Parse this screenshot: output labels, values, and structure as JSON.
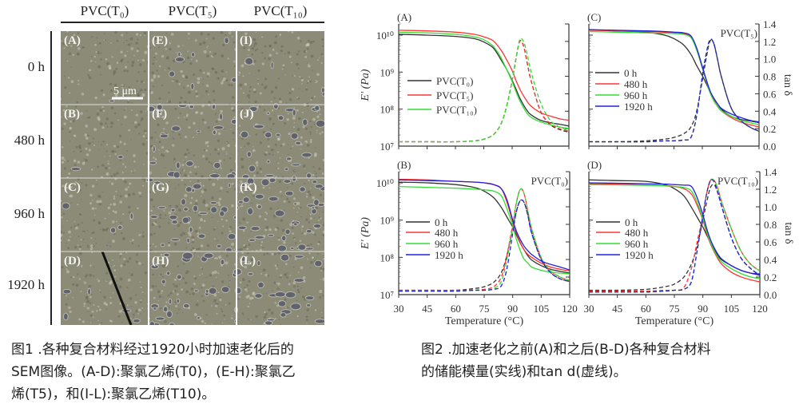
{
  "sem_figure": {
    "column_headers": [
      "PVC(T₀)",
      "PVC(T₅)",
      "PVC(T₁₀)"
    ],
    "row_labels": [
      "0 h",
      "480 h",
      "960 h",
      "1920 h"
    ],
    "panel_labels": [
      [
        "(A)",
        "(E)",
        "(I)"
      ],
      [
        "(B)",
        "(F)",
        "(J)"
      ],
      [
        "(C)",
        "(G)",
        "(K)"
      ],
      [
        "(D)",
        "(H)",
        "(L)"
      ]
    ],
    "scale_bar": "5 μm",
    "colors": {
      "surface": "#8c8b78",
      "pit": "#3a3f55",
      "highlight": "#d8d6c8"
    }
  },
  "captions": {
    "figure1_lines": [
      "图1 .各种复合材料经过1920小时加速老化后的",
      "SEM图像。(A-D):聚氯乙烯(T0)，(E-H):聚氯乙",
      "烯(T5)，和(I-L):聚氯乙烯(T10)。"
    ],
    "figure2_lines": [
      "图2 .加速老化之前(A)和之后(B-D)各种复合材料",
      "的储能模量(实线)和tan d(虚线)。"
    ]
  },
  "chart_data": [
    {
      "type": "line",
      "panel": "(A)",
      "sample_label": "",
      "y_label_left": "E' (Pa)",
      "y_label_right": "",
      "xlabel": "",
      "y_scale_left": "log",
      "ylim_left": [
        10000000.0,
        20000000000.0
      ],
      "ylim_right": [
        0,
        1.4
      ],
      "xlim": [
        30,
        120
      ],
      "x_tick_labels": [],
      "y_tick_labels_left": [
        "10⁷",
        "10⁸",
        "10⁹",
        "10¹⁰"
      ],
      "y_tick_labels_right": [],
      "legend_placement": "center-left",
      "x": [
        30,
        45,
        60,
        70,
        75,
        80,
        84,
        87,
        90,
        92,
        94,
        96,
        98,
        100,
        105,
        110,
        115,
        120
      ],
      "series": [
        {
          "name": "PVC(T₀)",
          "color": "#333333",
          "storage_modulus": [
            10500000000.0,
            10000000000.0,
            9200000000.0,
            8000000000.0,
            6500000000.0,
            4500000000.0,
            2200000000.0,
            1200000000.0,
            600000000.0,
            350000000.0,
            200000000.0,
            130000000.0,
            90000000.0,
            70000000.0,
            50000000.0,
            43000000.0,
            39000000.0,
            35000000.0
          ],
          "tan_delta": [
            0.05,
            0.05,
            0.05,
            0.06,
            0.08,
            0.13,
            0.25,
            0.45,
            0.75,
            1.0,
            1.2,
            1.15,
            0.95,
            0.75,
            0.4,
            0.25,
            0.19,
            0.16
          ]
        },
        {
          "name": "PVC(T₅)",
          "color": "#ff3333",
          "storage_modulus": [
            13500000000.0,
            13000000000.0,
            12000000000.0,
            10500000000.0,
            9000000000.0,
            7000000000.0,
            4000000000.0,
            2200000000.0,
            1100000000.0,
            600000000.0,
            350000000.0,
            230000000.0,
            160000000.0,
            120000000.0,
            80000000.0,
            65000000.0,
            55000000.0,
            50000000.0
          ],
          "tan_delta": [
            0.05,
            0.05,
            0.05,
            0.06,
            0.08,
            0.13,
            0.25,
            0.45,
            0.75,
            1.0,
            1.2,
            1.15,
            0.95,
            0.75,
            0.4,
            0.26,
            0.2,
            0.17
          ]
        },
        {
          "name": "PVC(T₁₀)",
          "color": "#33dd33",
          "storage_modulus": [
            12000000000.0,
            11500000000.0,
            10500000000.0,
            9000000000.0,
            7500000000.0,
            5000000000.0,
            2500000000.0,
            1200000000.0,
            550000000.0,
            300000000.0,
            170000000.0,
            110000000.0,
            75000000.0,
            60000000.0,
            45000000.0,
            38000000.0,
            33000000.0,
            30000000.0
          ],
          "tan_delta": [
            0.05,
            0.05,
            0.05,
            0.06,
            0.08,
            0.13,
            0.25,
            0.45,
            0.75,
            1.0,
            1.22,
            1.2,
            1.05,
            0.85,
            0.5,
            0.3,
            0.22,
            0.18
          ]
        }
      ]
    },
    {
      "type": "line",
      "panel": "(B)",
      "sample_label": "PVC(T₀)",
      "y_label_left": "E' (Pa)",
      "y_label_right": "",
      "xlabel": "Temperature (°C)",
      "y_scale_left": "log",
      "ylim_left": [
        10000000.0,
        20000000000.0
      ],
      "ylim_right": [
        0,
        1.4
      ],
      "xlim": [
        30,
        120
      ],
      "x_tick_labels": [
        "30",
        "45",
        "60",
        "75",
        "90",
        "105",
        "120"
      ],
      "y_tick_labels_left": [
        "10⁷",
        "10⁸",
        "10⁹",
        "10¹⁰"
      ],
      "y_tick_labels_right": [],
      "legend_placement": "center-left",
      "x": [
        30,
        45,
        60,
        70,
        75,
        80,
        84,
        87,
        90,
        92,
        94,
        96,
        98,
        100,
        105,
        110,
        115,
        120
      ],
      "series": [
        {
          "name": "0 h",
          "color": "#333333",
          "storage_modulus": [
            10500000000.0,
            10000000000.0,
            9000000000.0,
            7500000000.0,
            6000000000.0,
            4000000000.0,
            2200000000.0,
            1200000000.0,
            650000000.0,
            400000000.0,
            240000000.0,
            160000000.0,
            110000000.0,
            85000000.0,
            60000000.0,
            48000000.0,
            42000000.0,
            38000000.0
          ],
          "tan_delta": [
            0.05,
            0.05,
            0.05,
            0.07,
            0.09,
            0.14,
            0.25,
            0.45,
            0.75,
            0.95,
            1.07,
            1.05,
            0.9,
            0.7,
            0.4,
            0.25,
            0.18,
            0.15
          ]
        },
        {
          "name": "480 h",
          "color": "#ff3333",
          "storage_modulus": [
            12500000000.0,
            12000000000.0,
            11000000000.0,
            10500000000.0,
            10000000000.0,
            9000000000.0,
            7000000000.0,
            3000000000.0,
            900000000.0,
            450000000.0,
            250000000.0,
            160000000.0,
            120000000.0,
            100000000.0,
            70000000.0,
            55000000.0,
            48000000.0,
            43000000.0
          ],
          "tan_delta": [
            0.05,
            0.05,
            0.05,
            0.05,
            0.06,
            0.09,
            0.2,
            0.45,
            0.8,
            1.05,
            1.2,
            1.15,
            0.95,
            0.75,
            0.42,
            0.27,
            0.2,
            0.16
          ]
        },
        {
          "name": "960 h",
          "color": "#33dd33",
          "storage_modulus": [
            8000000000.0,
            7600000000.0,
            7200000000.0,
            6800000000.0,
            6500000000.0,
            6000000000.0,
            4500000000.0,
            2000000000.0,
            700000000.0,
            300000000.0,
            150000000.0,
            90000000.0,
            70000000.0,
            55000000.0,
            45000000.0,
            40000000.0,
            38000000.0,
            36000000.0
          ],
          "tan_delta": [
            0.04,
            0.04,
            0.04,
            0.05,
            0.05,
            0.07,
            0.15,
            0.4,
            0.78,
            1.05,
            1.2,
            1.15,
            0.95,
            0.75,
            0.42,
            0.27,
            0.2,
            0.16
          ]
        },
        {
          "name": "1920 h",
          "color": "#2222dd",
          "storage_modulus": [
            12000000000.0,
            11500000000.0,
            11000000000.0,
            10500000000.0,
            10000000000.0,
            9000000000.0,
            7000000000.0,
            3500000000.0,
            1000000000.0,
            500000000.0,
            300000000.0,
            200000000.0,
            150000000.0,
            120000000.0,
            80000000.0,
            65000000.0,
            55000000.0,
            46000000.0
          ],
          "tan_delta": [
            0.04,
            0.04,
            0.04,
            0.05,
            0.05,
            0.06,
            0.1,
            0.3,
            0.7,
            0.95,
            1.07,
            1.05,
            0.9,
            0.7,
            0.4,
            0.25,
            0.18,
            0.15
          ]
        }
      ]
    },
    {
      "type": "line",
      "panel": "(C)",
      "sample_label": "PVC(T₅)",
      "y_label_left": "",
      "y_label_right": "tan δ",
      "xlabel": "",
      "y_scale_left": "log",
      "ylim_left": [
        10000000.0,
        20000000000.0
      ],
      "ylim_right": [
        0,
        1.4
      ],
      "xlim": [
        30,
        120
      ],
      "x_tick_labels": [],
      "y_tick_labels_left": [],
      "y_tick_labels_right": [
        "0.0",
        "0.2",
        "0.4",
        "0.6",
        "0.8",
        "1.0",
        "1.2",
        "1.4"
      ],
      "legend_placement": "center-left",
      "x": [
        30,
        45,
        60,
        70,
        75,
        80,
        84,
        87,
        90,
        92,
        94,
        96,
        98,
        100,
        105,
        110,
        115,
        120
      ],
      "series": [
        {
          "name": "0 h",
          "color": "#333333",
          "storage_modulus": [
            14000000000.0,
            13000000000.0,
            12000000000.0,
            10000000000.0,
            8000000000.0,
            5500000000.0,
            3000000000.0,
            1500000000.0,
            800000000.0,
            500000000.0,
            300000000.0,
            200000000.0,
            140000000.0,
            100000000.0,
            65000000.0,
            53000000.0,
            48000000.0,
            43000000.0
          ],
          "tan_delta": [
            0.05,
            0.05,
            0.06,
            0.08,
            0.1,
            0.14,
            0.22,
            0.4,
            0.75,
            1.0,
            1.2,
            1.18,
            1.0,
            0.8,
            0.45,
            0.3,
            0.22,
            0.17
          ]
        },
        {
          "name": "480 h",
          "color": "#ff3333",
          "storage_modulus": [
            13500000000.0,
            13000000000.0,
            12500000000.0,
            12000000000.0,
            11700000000.0,
            11000000000.0,
            9000000000.0,
            4000000000.0,
            1300000000.0,
            600000000.0,
            300000000.0,
            180000000.0,
            120000000.0,
            90000000.0,
            60000000.0,
            45000000.0,
            38000000.0,
            33000000.0
          ],
          "tan_delta": [
            0.05,
            0.05,
            0.05,
            0.06,
            0.06,
            0.07,
            0.1,
            0.35,
            0.8,
            1.05,
            1.22,
            1.18,
            1.0,
            0.8,
            0.45,
            0.3,
            0.22,
            0.17
          ]
        },
        {
          "name": "960 h",
          "color": "#33dd33",
          "storage_modulus": [
            12500000000.0,
            12000000000.0,
            11500000000.0,
            11200000000.0,
            11000000000.0,
            10500000000.0,
            8500000000.0,
            4000000000.0,
            1300000000.0,
            600000000.0,
            280000000.0,
            170000000.0,
            120000000.0,
            90000000.0,
            65000000.0,
            50000000.0,
            43000000.0,
            38000000.0
          ],
          "tan_delta": [
            0.05,
            0.05,
            0.05,
            0.06,
            0.06,
            0.07,
            0.1,
            0.35,
            0.8,
            1.05,
            1.22,
            1.18,
            1.0,
            0.8,
            0.45,
            0.3,
            0.22,
            0.17
          ]
        },
        {
          "name": "1920 h",
          "color": "#2222dd",
          "storage_modulus": [
            14000000000.0,
            13500000000.0,
            13000000000.0,
            12500000000.0,
            12000000000.0,
            11500000000.0,
            9500000000.0,
            4500000000.0,
            1400000000.0,
            650000000.0,
            320000000.0,
            200000000.0,
            140000000.0,
            105000000.0,
            75000000.0,
            60000000.0,
            50000000.0,
            45000000.0
          ],
          "tan_delta": [
            0.05,
            0.05,
            0.05,
            0.06,
            0.06,
            0.07,
            0.1,
            0.35,
            0.8,
            1.05,
            1.22,
            1.18,
            1.0,
            0.8,
            0.45,
            0.3,
            0.22,
            0.17
          ]
        }
      ]
    },
    {
      "type": "line",
      "panel": "(D)",
      "sample_label": "PVC(T₁₀)",
      "y_label_left": "",
      "y_label_right": "tan δ",
      "xlabel": "Temperature (°C)",
      "y_scale_left": "log",
      "ylim_left": [
        10000000.0,
        20000000000.0
      ],
      "ylim_right": [
        0,
        1.4
      ],
      "xlim": [
        30,
        120
      ],
      "x_tick_labels": [
        "30",
        "45",
        "60",
        "75",
        "90",
        "105",
        "120"
      ],
      "y_tick_labels_left": [],
      "y_tick_labels_right": [
        "0.0",
        "0.2",
        "0.4",
        "0.6",
        "0.8",
        "1.0",
        "1.2",
        "1.4"
      ],
      "legend_placement": "center-left",
      "x": [
        30,
        45,
        60,
        70,
        75,
        80,
        84,
        87,
        90,
        92,
        94,
        96,
        98,
        100,
        105,
        110,
        115,
        120
      ],
      "series": [
        {
          "name": "0 h",
          "color": "#333333",
          "storage_modulus": [
            12000000000.0,
            11500000000.0,
            11000000000.0,
            9000000000.0,
            7000000000.0,
            4500000000.0,
            2200000000.0,
            1200000000.0,
            650000000.0,
            400000000.0,
            250000000.0,
            160000000.0,
            110000000.0,
            85000000.0,
            60000000.0,
            45000000.0,
            38000000.0,
            33000000.0
          ],
          "tan_delta": [
            0.05,
            0.05,
            0.06,
            0.09,
            0.12,
            0.2,
            0.35,
            0.55,
            0.85,
            1.05,
            1.22,
            1.25,
            1.15,
            1.0,
            0.65,
            0.42,
            0.3,
            0.22
          ]
        },
        {
          "name": "480 h",
          "color": "#ff3333",
          "storage_modulus": [
            9500000000.0,
            9200000000.0,
            8800000000.0,
            8500000000.0,
            8000000000.0,
            7000000000.0,
            5000000000.0,
            2500000000.0,
            1000000000.0,
            450000000.0,
            230000000.0,
            140000000.0,
            90000000.0,
            65000000.0,
            40000000.0,
            30000000.0,
            25000000.0,
            22000000.0
          ],
          "tan_delta": [
            0.04,
            0.04,
            0.04,
            0.05,
            0.05,
            0.08,
            0.3,
            0.6,
            0.9,
            1.15,
            1.3,
            1.3,
            1.2,
            1.05,
            0.75,
            0.5,
            0.35,
            0.27
          ]
        },
        {
          "name": "960 h",
          "color": "#33dd33",
          "storage_modulus": [
            9000000000.0,
            8800000000.0,
            8600000000.0,
            8300000000.0,
            8000000000.0,
            7500000000.0,
            6000000000.0,
            3000000000.0,
            1100000000.0,
            500000000.0,
            250000000.0,
            150000000.0,
            100000000.0,
            75000000.0,
            50000000.0,
            37000000.0,
            30000000.0,
            27000000.0
          ],
          "tan_delta": [
            0.03,
            0.03,
            0.03,
            0.04,
            0.05,
            0.06,
            0.15,
            0.5,
            0.9,
            1.15,
            1.3,
            1.3,
            1.2,
            1.05,
            0.75,
            0.5,
            0.35,
            0.27
          ]
        },
        {
          "name": "1920 h",
          "color": "#2222dd",
          "storage_modulus": [
            10000000000.0,
            9800000000.0,
            9500000000.0,
            9300000000.0,
            9000000000.0,
            8700000000.0,
            8000000000.0,
            4000000000.0,
            1400000000.0,
            600000000.0,
            300000000.0,
            180000000.0,
            120000000.0,
            90000000.0,
            60000000.0,
            45000000.0,
            38000000.0,
            36000000.0
          ],
          "tan_delta": [
            0.03,
            0.03,
            0.03,
            0.04,
            0.05,
            0.06,
            0.15,
            0.5,
            0.9,
            1.15,
            1.3,
            1.28,
            1.15,
            1.0,
            0.65,
            0.42,
            0.3,
            0.22
          ]
        }
      ]
    }
  ]
}
